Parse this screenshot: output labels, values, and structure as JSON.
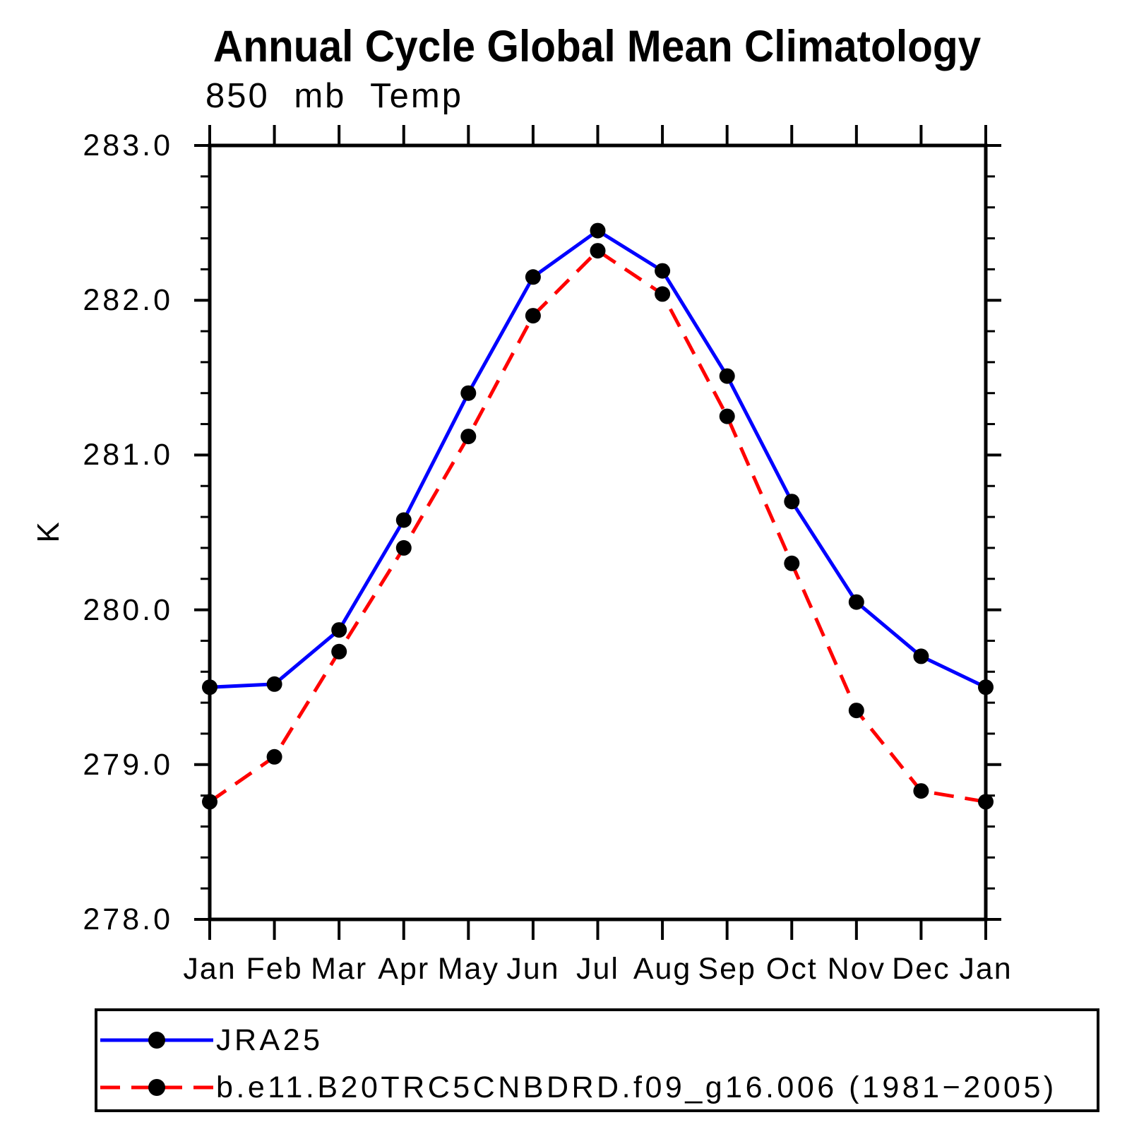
{
  "figure": {
    "title": "Annual Cycle Global Mean Climatology",
    "subtitle": "850 mb Temp",
    "y_axis_label": "K"
  },
  "chart_data": {
    "type": "line",
    "title": "Annual Cycle Global Mean Climatology",
    "subtitle": "850 mb Temp",
    "ylabel": "K",
    "xlabel": "",
    "categories": [
      "Jan",
      "Feb",
      "Mar",
      "Apr",
      "May",
      "Jun",
      "Jul",
      "Aug",
      "Sep",
      "Oct",
      "Nov",
      "Dec",
      "Jan"
    ],
    "ylim": [
      278.0,
      283.0
    ],
    "ytick_interval": 1.0,
    "yminor_interval": 0.2,
    "grid": false,
    "frame": "box-with-outward-ticks",
    "legend_position": "bottom-left-box",
    "series": [
      {
        "name": "JRA25",
        "color": "#0000ff",
        "line_style": "solid",
        "line_width": 5,
        "marker": "filled-circle",
        "marker_color": "#000000",
        "values": [
          279.5,
          279.52,
          279.87,
          280.58,
          281.4,
          282.15,
          282.45,
          282.19,
          281.51,
          280.7,
          280.05,
          279.7,
          279.5
        ]
      },
      {
        "name": "b.e11.B20TRC5CNBDRD.f09_g16.006 (1981−2005)",
        "color": "#ff0000",
        "line_style": "dashed",
        "line_width": 5,
        "marker": "filled-circle",
        "marker_color": "#000000",
        "values": [
          278.76,
          279.05,
          279.73,
          280.4,
          281.12,
          281.9,
          282.32,
          282.04,
          281.25,
          280.3,
          279.35,
          278.83,
          278.76
        ]
      }
    ]
  }
}
